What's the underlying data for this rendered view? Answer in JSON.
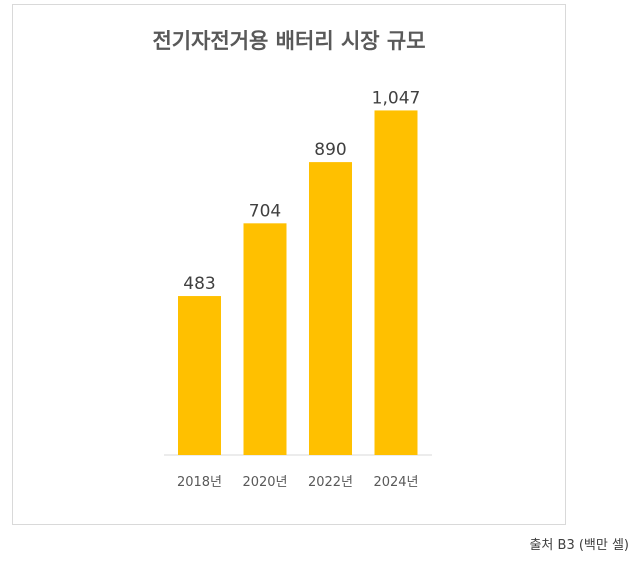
{
  "chart_data": {
    "type": "bar",
    "title": "전기자전거용 배터리 시장 규모",
    "categories": [
      "2018년",
      "2020년",
      "2022년",
      "2024년"
    ],
    "values": [
      483,
      704,
      890,
      1047
    ],
    "data_labels": [
      "483",
      "704",
      "890",
      "1,047"
    ],
    "ylim": [
      0,
      1100
    ],
    "bar_color": "#FFC000",
    "grid": false,
    "legend": "none"
  },
  "footer": {
    "source_note": "출처 B3 (백만 셀)"
  }
}
